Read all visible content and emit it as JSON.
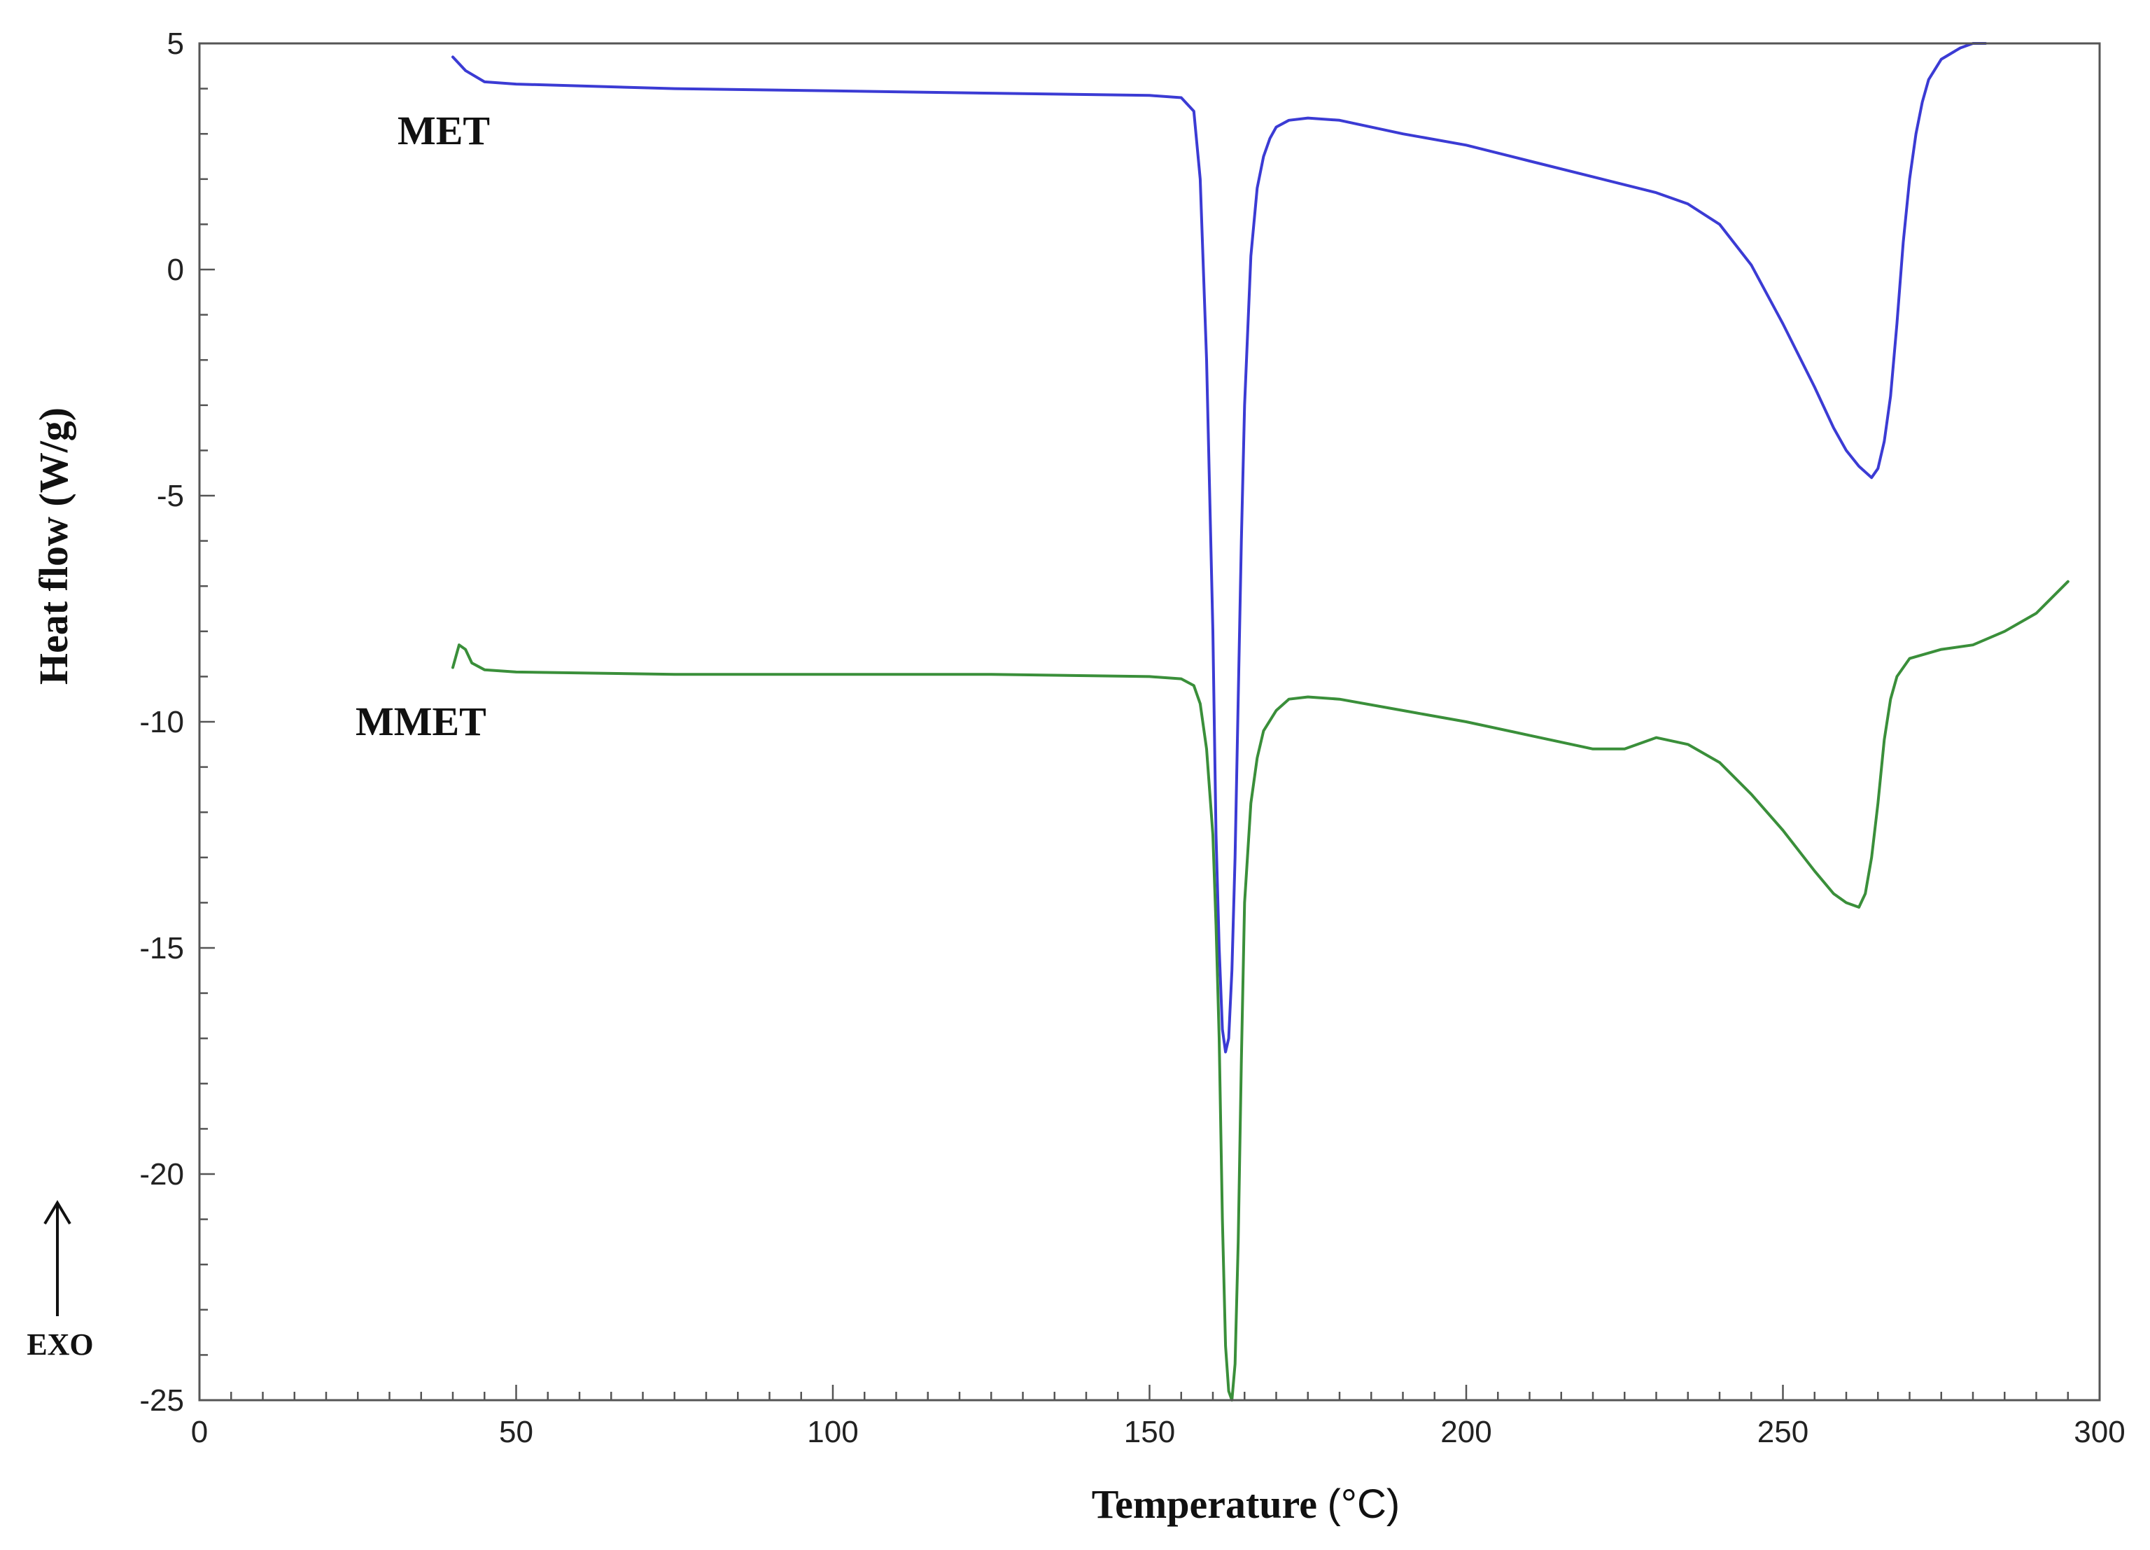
{
  "chart_data": {
    "type": "line",
    "xlabel": "Temperature",
    "xlabel_unit": "(°C)",
    "ylabel": "Heat flow (W/g)",
    "xlim": [
      0,
      300
    ],
    "ylim": [
      -25,
      5
    ],
    "xticks": [
      0,
      50,
      100,
      150,
      200,
      250,
      300
    ],
    "yticks": [
      5,
      0,
      -5,
      -10,
      -15,
      -20,
      -25
    ],
    "xtick_labels": [
      "0",
      "50",
      "100",
      "150",
      "200",
      "250",
      "300"
    ],
    "ytick_labels": [
      "5",
      "0",
      "-5",
      "-10",
      "-15",
      "-20",
      "-25"
    ],
    "grid": false,
    "exo_indicator": "EXO",
    "series": [
      {
        "name": "MET",
        "color": "#3b3bd4",
        "x": [
          40,
          42,
          45,
          50,
          75,
          100,
          125,
          150,
          155,
          157,
          158,
          159,
          160,
          160.5,
          161,
          161.5,
          162,
          162.5,
          163,
          163.5,
          164,
          164.5,
          165,
          166,
          167,
          168,
          169,
          170,
          172,
          175,
          180,
          190,
          200,
          210,
          220,
          230,
          235,
          240,
          245,
          250,
          255,
          258,
          260,
          262,
          264,
          265,
          266,
          267,
          268,
          269,
          270,
          271,
          272,
          273,
          275,
          278,
          280,
          282
        ],
        "y": [
          4.7,
          4.4,
          4.15,
          4.1,
          4.0,
          3.95,
          3.9,
          3.85,
          3.8,
          3.5,
          2.0,
          -2.0,
          -8.0,
          -12.5,
          -15.0,
          -16.8,
          -17.3,
          -17.0,
          -15.5,
          -13.0,
          -9.5,
          -6.0,
          -3.0,
          0.3,
          1.8,
          2.5,
          2.9,
          3.15,
          3.3,
          3.35,
          3.3,
          3.0,
          2.75,
          2.4,
          2.05,
          1.7,
          1.45,
          1.0,
          0.1,
          -1.2,
          -2.6,
          -3.5,
          -4.0,
          -4.35,
          -4.6,
          -4.4,
          -3.8,
          -2.8,
          -1.2,
          0.6,
          2.0,
          3.0,
          3.7,
          4.2,
          4.65,
          4.9,
          5.0,
          5.0
        ]
      },
      {
        "name": "MMET",
        "color": "#3a8f3a",
        "x": [
          40,
          41,
          42,
          43,
          45,
          50,
          75,
          100,
          125,
          150,
          155,
          157,
          158,
          159,
          160,
          160.5,
          161,
          161.5,
          162,
          162.5,
          163,
          163.5,
          164,
          164.5,
          165,
          166,
          167,
          168,
          170,
          172,
          175,
          180,
          190,
          200,
          210,
          220,
          225,
          230,
          235,
          240,
          245,
          250,
          255,
          258,
          260,
          262,
          263,
          264,
          265,
          266,
          267,
          268,
          270,
          275,
          280,
          285,
          290,
          295
        ],
        "y": [
          -8.8,
          -8.3,
          -8.4,
          -8.7,
          -8.85,
          -8.9,
          -8.95,
          -8.95,
          -8.95,
          -9.0,
          -9.05,
          -9.2,
          -9.6,
          -10.6,
          -12.5,
          -14.5,
          -17.0,
          -21.0,
          -23.8,
          -24.8,
          -25.0,
          -24.2,
          -21.5,
          -17.5,
          -14.0,
          -11.8,
          -10.8,
          -10.2,
          -9.75,
          -9.5,
          -9.45,
          -9.5,
          -9.75,
          -10.0,
          -10.3,
          -10.6,
          -10.6,
          -10.35,
          -10.5,
          -10.9,
          -11.6,
          -12.4,
          -13.3,
          -13.8,
          -14.0,
          -14.1,
          -13.8,
          -13.0,
          -11.8,
          -10.4,
          -9.5,
          -9.0,
          -8.6,
          -8.4,
          -8.3,
          -8.0,
          -7.6,
          -6.9
        ]
      }
    ]
  }
}
